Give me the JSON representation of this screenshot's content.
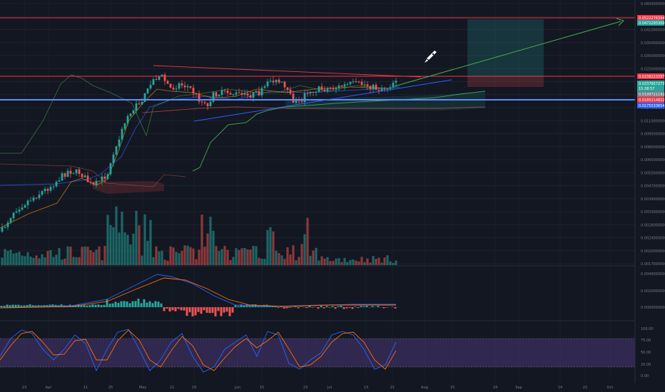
{
  "chart_data": {
    "type": "candlestick",
    "price_axis": {
      "ticks": [
        "0.0600000000",
        "0.0470000000",
        "0.0410000000",
        "0.0350000000",
        "0.0300000000",
        "0.0250000000",
        "0.0210000000",
        "0.0170000000",
        "0.0140000000",
        "0.0110000000",
        "0.0095000000",
        "0.0080000000",
        "0.0065000000",
        "0.0055000000",
        "0.0047000000",
        "0.0039000000",
        "0.0033000000",
        "0.0028000000",
        "0.0024000000",
        "0.0020000000",
        "0.0017000000"
      ],
      "scale": "log"
    },
    "price_badges": {
      "target": "0.0522276394",
      "target2": "0.0471295309",
      "entry_top": "0.0238223397",
      "last_price": "0.0237657273",
      "countdown": "15:38:57",
      "support_a": "0.0199721192",
      "support_b": "0.0185214822",
      "support_c": "0.0175533654"
    },
    "x_axis": {
      "ticks": [
        "23",
        "Apr",
        "11",
        "25",
        "May",
        "11",
        "19",
        "Jun",
        "15",
        "23",
        "Jul",
        "13",
        "21",
        "Aug",
        "15",
        "24",
        "Sep",
        "14",
        "22",
        "Oct"
      ]
    },
    "macd_axis": {
      "ticks": [
        "0.0040000000",
        "0.0020000000",
        "0.0000000000"
      ]
    },
    "stoch_axis": {
      "ticks": [
        "100.00",
        "75.00",
        "50.00",
        "25.00",
        "0.00"
      ]
    },
    "colors": {
      "up": "#26a69a",
      "down": "#ef5350",
      "horizontal_level": "#f23645",
      "support_line": "#2962ff",
      "projection": "#4caf50",
      "stoch_band": "#7e57c2",
      "background": "#131722"
    },
    "annotations": [
      "rocket-icon"
    ]
  }
}
